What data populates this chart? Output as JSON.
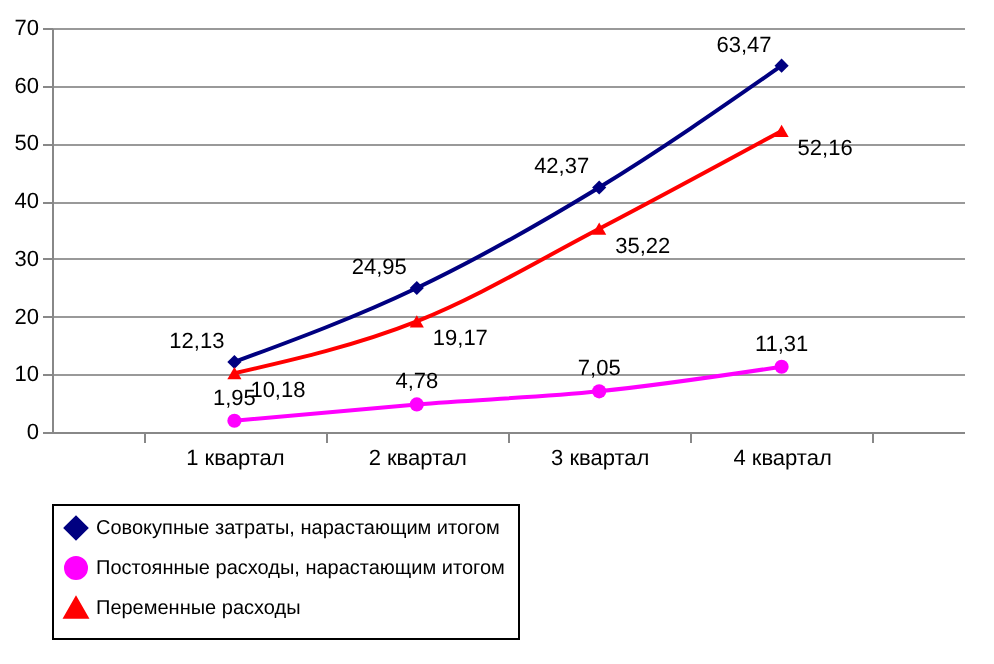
{
  "chart_data": {
    "type": "line",
    "categories": [
      "1 квартал",
      "2 квартал",
      "3 квартал",
      "4 квартал"
    ],
    "series": [
      {
        "name": "Совокупные затраты, нарастающим итогом",
        "color": "#000080",
        "marker": "diamond",
        "values": [
          12.13,
          24.95,
          42.37,
          63.47
        ],
        "value_labels": [
          "12,13",
          "24,95",
          "42,37",
          "63,47"
        ]
      },
      {
        "name": "Постоянные расходы, нарастающим итогом",
        "color": "#ff00ff",
        "marker": "circle",
        "values": [
          1.95,
          4.78,
          7.05,
          11.31
        ],
        "value_labels": [
          "1,95",
          "4,78",
          "7,05",
          "11,31"
        ]
      },
      {
        "name": "Переменные расходы",
        "color": "#ff0000",
        "marker": "triangle",
        "values": [
          10.18,
          19.17,
          35.22,
          52.16
        ],
        "value_labels": [
          "10,18",
          "19,17",
          "35,22",
          "52,16"
        ]
      }
    ],
    "ylim": [
      0,
      70
    ],
    "yticks": [
      0,
      10,
      20,
      30,
      40,
      50,
      60,
      70
    ],
    "grid": "y",
    "legend": "bottom"
  }
}
